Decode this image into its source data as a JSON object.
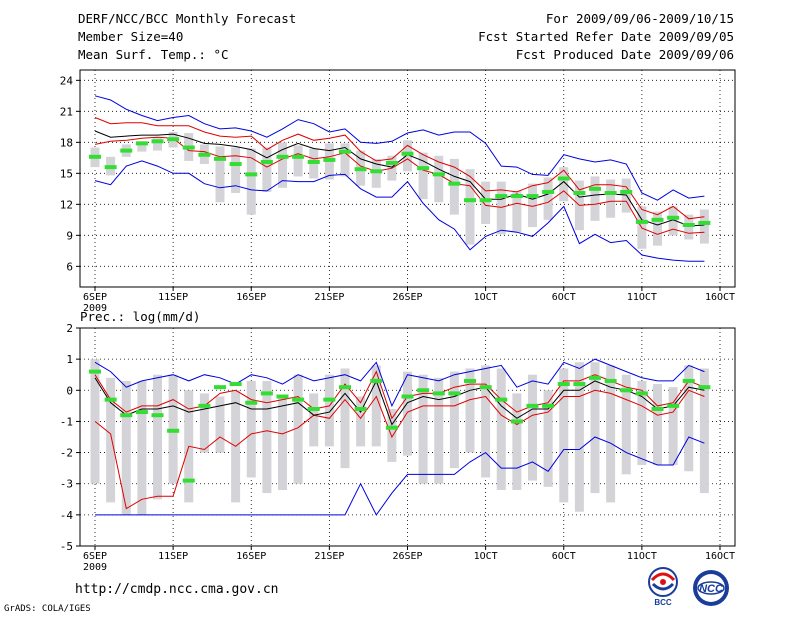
{
  "header": {
    "title": "DERF/NCC/BCC Monthly Forecast",
    "member_size": "Member Size=40",
    "variable": "Mean Surf. Temp.: °C",
    "period": "For 2009/09/06-2009/10/15",
    "start_date": "Fcst Started Refer Date 2009/09/05",
    "produced_date": "Fcst Produced Date 2009/09/06"
  },
  "footer": {
    "url": "http://cmdp.ncc.cma.gov.cn",
    "grads": "GrADS: COLA/IGES",
    "logo_bcc": "BCC",
    "logo_ncc": "NCC"
  },
  "colors": {
    "max_min": "#0000e0",
    "spread": "#e00000",
    "mean": "#000000",
    "box": "#d4d4d8",
    "median": "#33dd33",
    "grid": "#000000"
  },
  "chart_data": [
    {
      "type": "line",
      "name": "temperature",
      "title": "Mean Surf. Temp.: °C",
      "xlabel": "",
      "ylabel": "°C",
      "ylim": [
        4,
        25
      ],
      "yticks": [
        6,
        9,
        12,
        15,
        18,
        21,
        24
      ],
      "xlim": [
        1,
        41
      ],
      "xticks": [
        {
          "day": 1,
          "label": "6SEP",
          "sublabel": "2009"
        },
        {
          "day": 6,
          "label": "11SEP"
        },
        {
          "day": 11,
          "label": "16SEP"
        },
        {
          "day": 16,
          "label": "21SEP"
        },
        {
          "day": 21,
          "label": "26SEP"
        },
        {
          "day": 26,
          "label": "1OCT"
        },
        {
          "day": 31,
          "label": "6OCT"
        },
        {
          "day": 36,
          "label": "11OCT"
        },
        {
          "day": 41,
          "label": "16OCT"
        }
      ],
      "grid": true,
      "x": [
        1,
        2,
        3,
        4,
        5,
        6,
        7,
        8,
        9,
        10,
        11,
        12,
        13,
        14,
        15,
        16,
        17,
        18,
        19,
        20,
        21,
        22,
        23,
        24,
        25,
        26,
        27,
        28,
        29,
        30,
        31,
        32,
        33,
        34,
        35,
        36,
        37,
        38,
        39,
        40
      ],
      "series": [
        {
          "name": "max",
          "values": [
            22.5,
            22.1,
            21.2,
            20.6,
            20.1,
            20.4,
            20.6,
            19.8,
            19.3,
            19.4,
            19.1,
            18.5,
            19.3,
            20.2,
            19.8,
            19.0,
            19.3,
            18.0,
            17.9,
            18.1,
            18.9,
            19.2,
            18.7,
            19.0,
            19.0,
            17.9,
            15.7,
            15.6,
            14.9,
            14.8,
            16.8,
            16.4,
            16.1,
            16.3,
            15.9,
            13.1,
            12.4,
            13.4,
            12.6,
            12.8
          ]
        },
        {
          "name": "upper",
          "values": [
            20.4,
            19.8,
            19.9,
            19.9,
            19.6,
            19.6,
            19.6,
            19.0,
            18.6,
            18.5,
            18.6,
            17.3,
            18.2,
            18.8,
            18.2,
            18.4,
            18.7,
            17.1,
            16.2,
            16.4,
            17.7,
            16.8,
            16.1,
            15.6,
            14.7,
            13.3,
            13.4,
            13.2,
            13.8,
            14.1,
            15.3,
            13.4,
            13.9,
            13.9,
            13.7,
            11.5,
            11.0,
            11.8,
            10.6,
            10.8
          ]
        },
        {
          "name": "mean",
          "values": [
            19.1,
            18.5,
            18.6,
            18.7,
            18.7,
            18.8,
            18.4,
            17.9,
            17.8,
            17.6,
            17.3,
            16.5,
            17.3,
            17.9,
            17.4,
            17.2,
            17.5,
            16.4,
            15.9,
            15.6,
            16.8,
            16.2,
            15.4,
            14.7,
            14.2,
            12.5,
            12.5,
            13.0,
            12.5,
            13.0,
            14.2,
            12.7,
            12.9,
            13.0,
            12.9,
            10.5,
            10.0,
            10.5,
            9.9,
            10.0
          ]
        },
        {
          "name": "lower",
          "values": [
            17.8,
            18.1,
            18.2,
            18.4,
            18.5,
            18.4,
            17.2,
            17.1,
            16.6,
            16.7,
            16.5,
            15.6,
            16.4,
            16.9,
            16.4,
            16.6,
            17.0,
            15.7,
            15.2,
            15.5,
            16.4,
            15.3,
            14.9,
            14.0,
            13.8,
            11.9,
            11.7,
            12.1,
            11.8,
            12.2,
            13.3,
            11.9,
            12.0,
            12.3,
            12.3,
            9.7,
            9.1,
            9.6,
            9.2,
            9.3
          ]
        },
        {
          "name": "min",
          "values": [
            14.3,
            13.9,
            15.7,
            16.2,
            15.7,
            15.0,
            15.0,
            14.0,
            13.6,
            13.8,
            13.4,
            13.3,
            14.3,
            14.2,
            14.2,
            14.8,
            14.9,
            13.5,
            12.7,
            12.7,
            14.2,
            12.1,
            10.5,
            9.6,
            7.6,
            8.9,
            9.5,
            9.3,
            8.9,
            10.2,
            11.8,
            8.2,
            9.1,
            8.3,
            8.5,
            7.1,
            6.8,
            6.6,
            6.5,
            6.5
          ]
        },
        {
          "name": "box_high",
          "values": [
            17.5,
            16.6,
            17.8,
            18.1,
            18.4,
            19.0,
            18.9,
            17.8,
            17.6,
            17.5,
            17.4,
            17.5,
            18.0,
            17.7,
            17.4,
            17.9,
            17.9,
            17.2,
            16.4,
            16.7,
            18.2,
            17.0,
            16.7,
            16.4,
            15.4,
            14.2,
            14.2,
            13.3,
            14.0,
            14.6,
            15.6,
            14.3,
            14.7,
            14.4,
            14.5,
            11.8,
            11.3,
            11.8,
            11.0,
            11.5
          ]
        },
        {
          "name": "box_low",
          "values": [
            15.6,
            14.8,
            16.6,
            17.1,
            17.2,
            17.5,
            16.2,
            15.9,
            12.2,
            13.1,
            11.0,
            13.2,
            13.6,
            14.7,
            14.5,
            14.4,
            14.7,
            13.8,
            13.6,
            14.3,
            15.2,
            12.5,
            12.2,
            11.0,
            8.1,
            10.1,
            9.1,
            9.3,
            9.8,
            10.5,
            12.3,
            9.5,
            10.4,
            10.7,
            11.2,
            7.7,
            8.0,
            9.0,
            8.6,
            8.2
          ]
        },
        {
          "name": "median",
          "values": [
            16.6,
            15.6,
            17.2,
            17.9,
            18.1,
            18.3,
            17.5,
            16.8,
            16.4,
            15.9,
            14.9,
            16.1,
            16.6,
            16.6,
            16.1,
            16.3,
            17.1,
            15.4,
            15.2,
            16.0,
            16.9,
            15.5,
            14.9,
            14.0,
            12.4,
            12.4,
            12.8,
            12.8,
            12.8,
            13.2,
            14.5,
            13.1,
            13.5,
            13.1,
            13.2,
            10.3,
            10.5,
            10.7,
            10.0,
            10.2
          ]
        }
      ]
    },
    {
      "type": "line",
      "name": "precipitation",
      "title": "Prec.: log(mm/d)",
      "xlabel": "",
      "ylabel": "log(mm/d)",
      "ylim": [
        -5,
        2
      ],
      "yticks": [
        -5,
        -4,
        -3,
        -2,
        -1,
        0,
        1,
        2
      ],
      "xlim": [
        1,
        41
      ],
      "xticks": [
        {
          "day": 1,
          "label": "6SEP",
          "sublabel": "2009"
        },
        {
          "day": 6,
          "label": "11SEP"
        },
        {
          "day": 11,
          "label": "16SEP"
        },
        {
          "day": 16,
          "label": "21SEP"
        },
        {
          "day": 21,
          "label": "26SEP"
        },
        {
          "day": 26,
          "label": "1OCT"
        },
        {
          "day": 31,
          "label": "6OCT"
        },
        {
          "day": 36,
          "label": "11OCT"
        },
        {
          "day": 41,
          "label": "16OCT"
        }
      ],
      "grid": true,
      "x": [
        1,
        2,
        3,
        4,
        5,
        6,
        7,
        8,
        9,
        10,
        11,
        12,
        13,
        14,
        15,
        16,
        17,
        18,
        19,
        20,
        21,
        22,
        23,
        24,
        25,
        26,
        27,
        28,
        29,
        30,
        31,
        32,
        33,
        34,
        35,
        36,
        37,
        38,
        39,
        40
      ],
      "series": [
        {
          "name": "max",
          "values": [
            0.9,
            0.6,
            0.1,
            0.3,
            0.4,
            0.5,
            0.3,
            0.5,
            0.4,
            0.2,
            0.5,
            0.4,
            0.2,
            0.5,
            0.3,
            0.4,
            0.5,
            0.3,
            0.9,
            -0.5,
            0.5,
            0.4,
            0.3,
            0.5,
            0.6,
            0.7,
            0.8,
            0.1,
            0.3,
            0.2,
            0.9,
            0.7,
            1.0,
            0.8,
            0.6,
            0.4,
            0.3,
            0.3,
            0.8,
            0.6
          ]
        },
        {
          "name": "upper",
          "values": [
            0.5,
            -0.3,
            -0.7,
            -0.5,
            -0.5,
            -0.3,
            -0.6,
            -0.5,
            -0.1,
            0.0,
            -0.3,
            -0.4,
            -0.3,
            -0.2,
            -0.6,
            -0.5,
            0.2,
            -0.4,
            0.6,
            -0.9,
            -0.2,
            -0.1,
            -0.1,
            0.1,
            0.2,
            0.2,
            -0.3,
            -0.7,
            -0.5,
            -0.4,
            0.3,
            0.3,
            0.5,
            0.3,
            0.1,
            0.0,
            -0.5,
            -0.4,
            0.3,
            0.1
          ]
        },
        {
          "name": "mean",
          "values": [
            0.4,
            -0.4,
            -0.8,
            -0.6,
            -0.6,
            -0.5,
            -0.7,
            -0.6,
            -0.5,
            -0.4,
            -0.6,
            -0.6,
            -0.5,
            -0.4,
            -0.8,
            -0.7,
            -0.1,
            -0.7,
            0.3,
            -1.1,
            -0.4,
            -0.2,
            -0.3,
            -0.2,
            0.0,
            0.1,
            -0.5,
            -0.9,
            -0.6,
            -0.6,
            0.0,
            0.0,
            0.3,
            0.1,
            0.0,
            -0.2,
            -0.6,
            -0.5,
            0.1,
            0.0
          ]
        },
        {
          "name": "lower",
          "values": [
            -1.0,
            -1.4,
            -3.8,
            -3.5,
            -3.4,
            -3.4,
            -1.8,
            -1.9,
            -1.5,
            -1.8,
            -1.4,
            -1.3,
            -1.4,
            -1.2,
            -0.8,
            -0.9,
            -0.3,
            -0.9,
            -0.2,
            -1.5,
            -0.7,
            -0.5,
            -0.5,
            -0.5,
            -0.3,
            -0.2,
            -0.8,
            -1.1,
            -0.8,
            -0.7,
            -0.2,
            -0.2,
            0.0,
            -0.1,
            -0.3,
            -0.5,
            -0.8,
            -0.7,
            0.0,
            -0.2
          ]
        },
        {
          "name": "min",
          "values": [
            -4.0,
            -4.0,
            -4.0,
            -4.0,
            -4.0,
            -4.0,
            -4.0,
            -4.0,
            -4.0,
            -4.0,
            -4.0,
            -4.0,
            -4.0,
            -4.0,
            -4.0,
            -4.0,
            -4.0,
            -3.0,
            -4.0,
            -3.3,
            -2.7,
            -2.7,
            -2.7,
            -2.7,
            -2.3,
            -2.0,
            -2.5,
            -2.5,
            -2.3,
            -2.6,
            -1.9,
            -1.9,
            -1.5,
            -1.7,
            -2.0,
            -2.2,
            -2.4,
            -2.4,
            -1.5,
            -1.7
          ]
        },
        {
          "name": "box_high",
          "values": [
            1.0,
            0.4,
            0.3,
            0.3,
            0.5,
            0.5,
            0.0,
            -0.1,
            -0.2,
            0.0,
            0.3,
            0.3,
            -0.2,
            0.5,
            -0.1,
            0.5,
            0.7,
            -0.2,
            0.8,
            -0.6,
            0.6,
            0.5,
            0.4,
            0.6,
            0.7,
            0.8,
            0.7,
            -0.1,
            0.5,
            0.0,
            0.7,
            0.9,
            0.9,
            0.8,
            0.5,
            0.3,
            0.2,
            0.1,
            0.8,
            0.7
          ]
        },
        {
          "name": "box_low",
          "values": [
            -3.0,
            -3.6,
            -4.0,
            -4.0,
            -3.5,
            -3.0,
            -3.6,
            -2.0,
            -2.0,
            -3.6,
            -2.8,
            -3.3,
            -3.2,
            -3.0,
            -1.8,
            -1.8,
            -2.5,
            -1.8,
            -1.8,
            -2.3,
            -2.1,
            -3.0,
            -3.0,
            -2.5,
            -2.0,
            -2.8,
            -3.2,
            -3.2,
            -2.9,
            -3.1,
            -3.6,
            -3.9,
            -3.3,
            -3.6,
            -2.7,
            -2.4,
            -2.4,
            -2.4,
            -2.6,
            -3.3
          ]
        },
        {
          "name": "median",
          "values": [
            0.6,
            -0.3,
            -0.8,
            -0.7,
            -0.8,
            -1.3,
            -2.9,
            -0.5,
            0.1,
            0.2,
            -0.4,
            -0.1,
            -0.2,
            -0.3,
            -0.6,
            -0.3,
            0.1,
            -0.6,
            0.3,
            -1.2,
            -0.2,
            0.0,
            -0.1,
            -0.1,
            0.3,
            0.1,
            -0.3,
            -1.0,
            -0.5,
            -0.5,
            0.2,
            0.2,
            0.4,
            0.3,
            0.0,
            -0.1,
            -0.6,
            -0.5,
            0.3,
            0.1
          ]
        }
      ]
    }
  ]
}
